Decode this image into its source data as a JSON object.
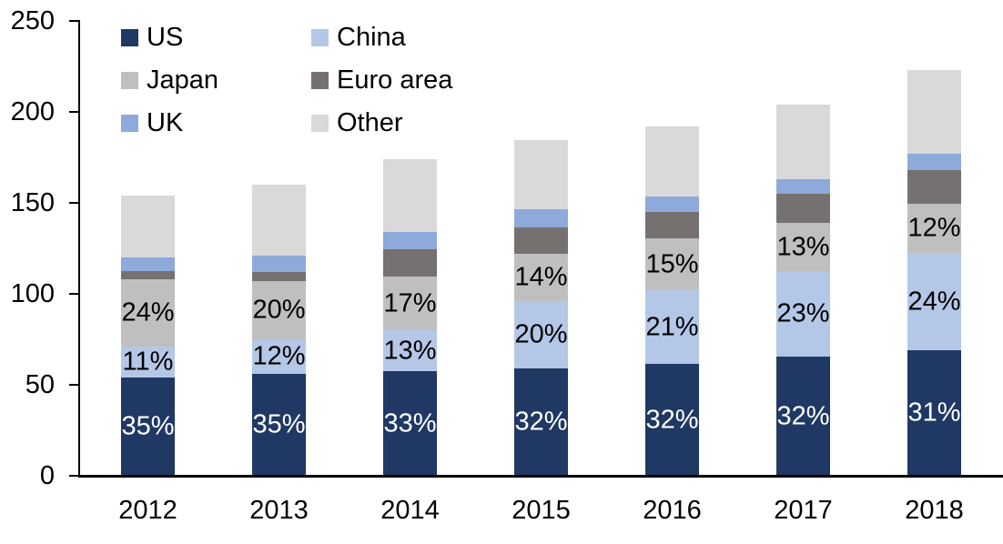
{
  "chart_data": {
    "type": "bar",
    "stacked": true,
    "title": "",
    "xlabel": "",
    "ylabel": "",
    "categories": [
      "2012",
      "2013",
      "2014",
      "2015",
      "2016",
      "2017",
      "2018"
    ],
    "series": [
      {
        "name": "US",
        "color": "#1F3864",
        "values": [
          54,
          56,
          57.5,
          59,
          61.5,
          65.5,
          69
        ],
        "labels": [
          "35%",
          "35%",
          "33%",
          "32%",
          "32%",
          "32%",
          "31%"
        ],
        "label_color": "#FFFFFF"
      },
      {
        "name": "China",
        "color": "#B4C7E7",
        "values": [
          17,
          19,
          22.5,
          37,
          40.5,
          47,
          53.5
        ],
        "labels": [
          "11%",
          "12%",
          "13%",
          "20%",
          "21%",
          "23%",
          "24%"
        ],
        "label_color": "#000000"
      },
      {
        "name": "Japan",
        "color": "#BFBFBF",
        "values": [
          37,
          32,
          29.5,
          26,
          28.5,
          26.5,
          27
        ],
        "labels": [
          "24%",
          "20%",
          "17%",
          "14%",
          "15%",
          "13%",
          "12%"
        ],
        "label_color": "#000000"
      },
      {
        "name": "Euro area",
        "color": "#767171",
        "values": [
          4.5,
          5,
          15,
          14.5,
          14.5,
          16,
          18.5
        ],
        "labels": null,
        "label_color": "#000000"
      },
      {
        "name": "UK",
        "color": "#8EAADB",
        "values": [
          7.5,
          9,
          9.5,
          10,
          8.5,
          8,
          9
        ],
        "labels": null,
        "label_color": "#000000"
      },
      {
        "name": "Other",
        "color": "#D9D9D9",
        "values": [
          34,
          39,
          40,
          38,
          38.5,
          41,
          46
        ],
        "labels": null,
        "label_color": "#000000"
      }
    ],
    "totals": [
      154,
      160,
      174,
      184.5,
      192,
      204,
      223
    ],
    "y_axis": {
      "min": 0,
      "max": 250,
      "tick_interval": 50,
      "tick_labels": [
        "0",
        "50",
        "100",
        "150",
        "200",
        "250"
      ]
    },
    "legend": {
      "position": "top-left",
      "columns": 2,
      "entries": [
        "US",
        "China",
        "Japan",
        "Euro area",
        "UK",
        "Other"
      ]
    },
    "grid": false
  },
  "colors": {
    "axis": "#000000",
    "background": "#FFFFFF",
    "us": "#1F3864",
    "china": "#B4C7E7",
    "japan": "#BFBFBF",
    "euro_area": "#767171",
    "uk": "#8EAADB",
    "other": "#D9D9D9"
  }
}
